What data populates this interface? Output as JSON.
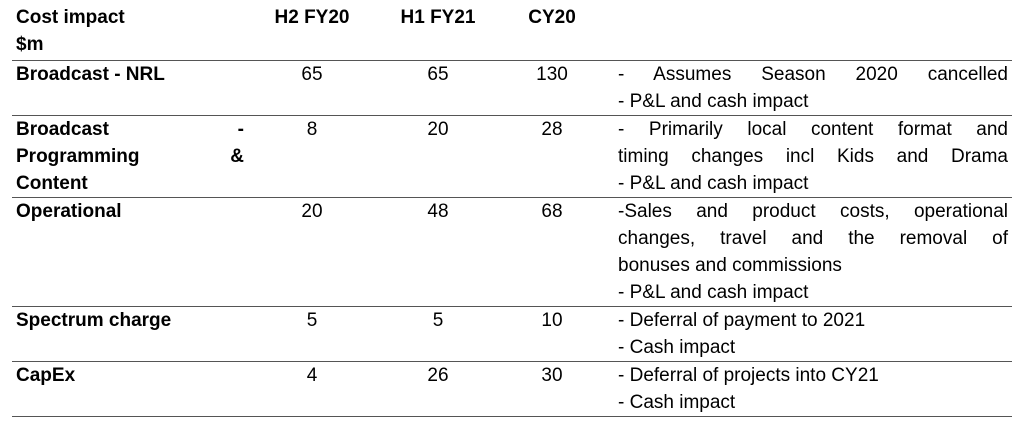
{
  "table": {
    "headers": {
      "item_line1": "Cost impact",
      "item_line2": "$m",
      "h2fy20": "H2 FY20",
      "h1fy21": "H1 FY21",
      "cy20": "CY20"
    },
    "rows": [
      {
        "item_lines": [
          "Broadcast - NRL"
        ],
        "h2fy20": "65",
        "h1fy21": "65",
        "cy20": "130",
        "notes": [
          "- Assumes Season 2020 cancelled",
          "- P&L and cash impact"
        ]
      },
      {
        "item_lines": [
          "Broadcast -",
          "Programming &",
          "Content"
        ],
        "h2fy20": "8",
        "h1fy21": "20",
        "cy20": "28",
        "notes": [
          "- Primarily local content format and",
          "timing changes incl Kids and Drama",
          "- P&L and cash impact"
        ]
      },
      {
        "item_lines": [
          "Operational"
        ],
        "h2fy20": "20",
        "h1fy21": "48",
        "cy20": "68",
        "notes": [
          "-Sales and product costs, operational",
          "changes, travel and the removal of",
          "bonuses and commissions",
          "- P&L and cash impact"
        ]
      },
      {
        "item_lines": [
          "Spectrum charge"
        ],
        "h2fy20": "5",
        "h1fy21": "5",
        "cy20": "10",
        "notes": [
          "- Deferral of payment to 2021",
          "- Cash impact"
        ]
      },
      {
        "item_lines": [
          "CapEx"
        ],
        "h2fy20": "4",
        "h1fy21": "26",
        "cy20": "30",
        "notes": [
          "- Deferral of projects into CY21",
          "- Cash impact"
        ]
      }
    ]
  }
}
